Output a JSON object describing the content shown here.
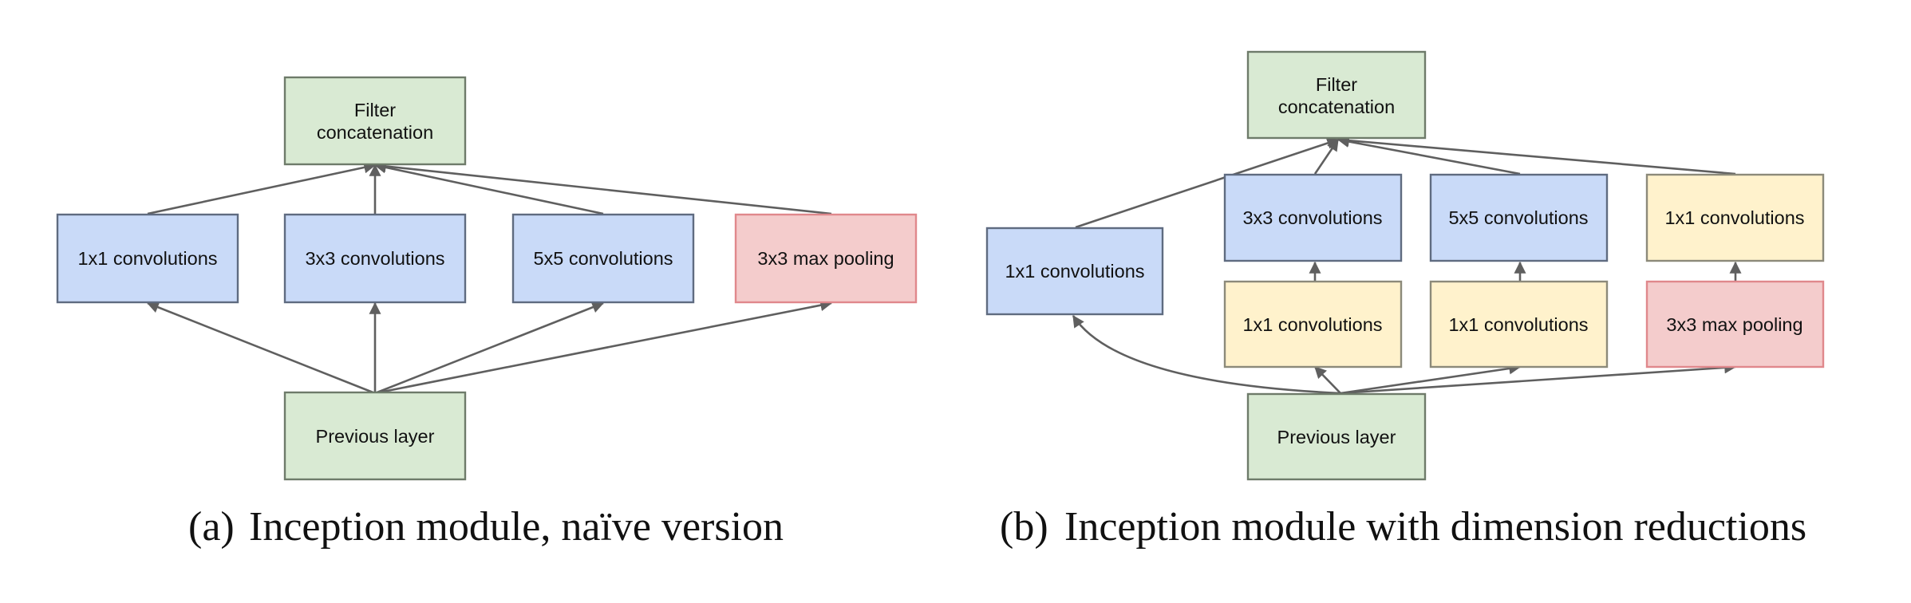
{
  "diagram_a": {
    "caption_label": "(a)",
    "caption_text": "Inception module, naïve version",
    "nodes": {
      "filter_concat": {
        "line1": "Filter",
        "line2": "concatenation"
      },
      "conv1x1": "1x1 convolutions",
      "conv3x3": "3x3 convolutions",
      "conv5x5": "5x5 convolutions",
      "maxpool": "3x3 max pooling",
      "previous": "Previous layer"
    }
  },
  "diagram_b": {
    "caption_label": "(b)",
    "caption_text": "Inception module with dimension reductions",
    "nodes": {
      "filter_concat": {
        "line1": "Filter",
        "line2": "concatenation"
      },
      "conv1x1_direct": "1x1 convolutions",
      "conv3x3": "3x3 convolutions",
      "conv5x5": "5x5 convolutions",
      "conv1x1_after_pool": "1x1 convolutions",
      "reduce_before_3x3": "1x1 convolutions",
      "reduce_before_5x5": "1x1 convolutions",
      "maxpool": "3x3 max pooling",
      "previous": "Previous layer"
    }
  },
  "colors": {
    "input_output_fill": "#d9ead3",
    "convolution_fill": "#c9daf8",
    "reduction_fill": "#fff2cc",
    "pooling_fill": "#f4cccc",
    "arrow": "#5f5f5f"
  }
}
